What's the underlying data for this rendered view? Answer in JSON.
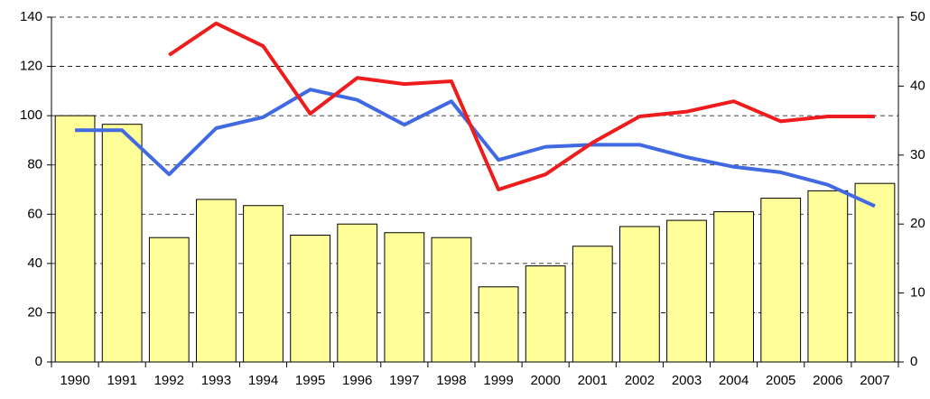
{
  "chart_data": {
    "type": "bar-line",
    "categories": [
      "1990",
      "1991",
      "1992",
      "1993",
      "1994",
      "1995",
      "1996",
      "1997",
      "1998",
      "1999",
      "2000",
      "2001",
      "2002",
      "2003",
      "2004",
      "2005",
      "2006",
      "2007"
    ],
    "series": [
      {
        "type": "bar",
        "color": "#ffff99",
        "values": [
          100,
          96.5,
          50.5,
          66,
          63.5,
          51.5,
          56,
          52.5,
          50.5,
          30.5,
          39,
          47,
          55,
          57.5,
          61,
          66.5,
          69.5,
          72.5
        ]
      },
      {
        "type": "line",
        "axis": "y2",
        "color": "#4169e1",
        "values": [
          33.6,
          33.6,
          27.2,
          33.9,
          35.5,
          39.5,
          38.0,
          34.4,
          37.8,
          29.3,
          31.2,
          31.5,
          31.5,
          29.7,
          28.3,
          27.5,
          25.7,
          22.6
        ]
      },
      {
        "type": "line",
        "axis": "y2",
        "color": "#ee1c1c",
        "values": [
          null,
          null,
          44.5,
          49.1,
          45.8,
          36.0,
          41.2,
          40.3,
          40.7,
          25.0,
          27.2,
          31.8,
          35.6,
          36.3,
          37.8,
          34.9,
          35.6,
          35.6
        ]
      }
    ],
    "ylim": [
      0,
      140
    ],
    "yticks": [
      0,
      20,
      40,
      60,
      80,
      100,
      120,
      140
    ],
    "y2lim": [
      0,
      50
    ],
    "y2ticks": [
      0,
      10,
      20,
      30,
      40,
      50
    ],
    "grid": true
  }
}
